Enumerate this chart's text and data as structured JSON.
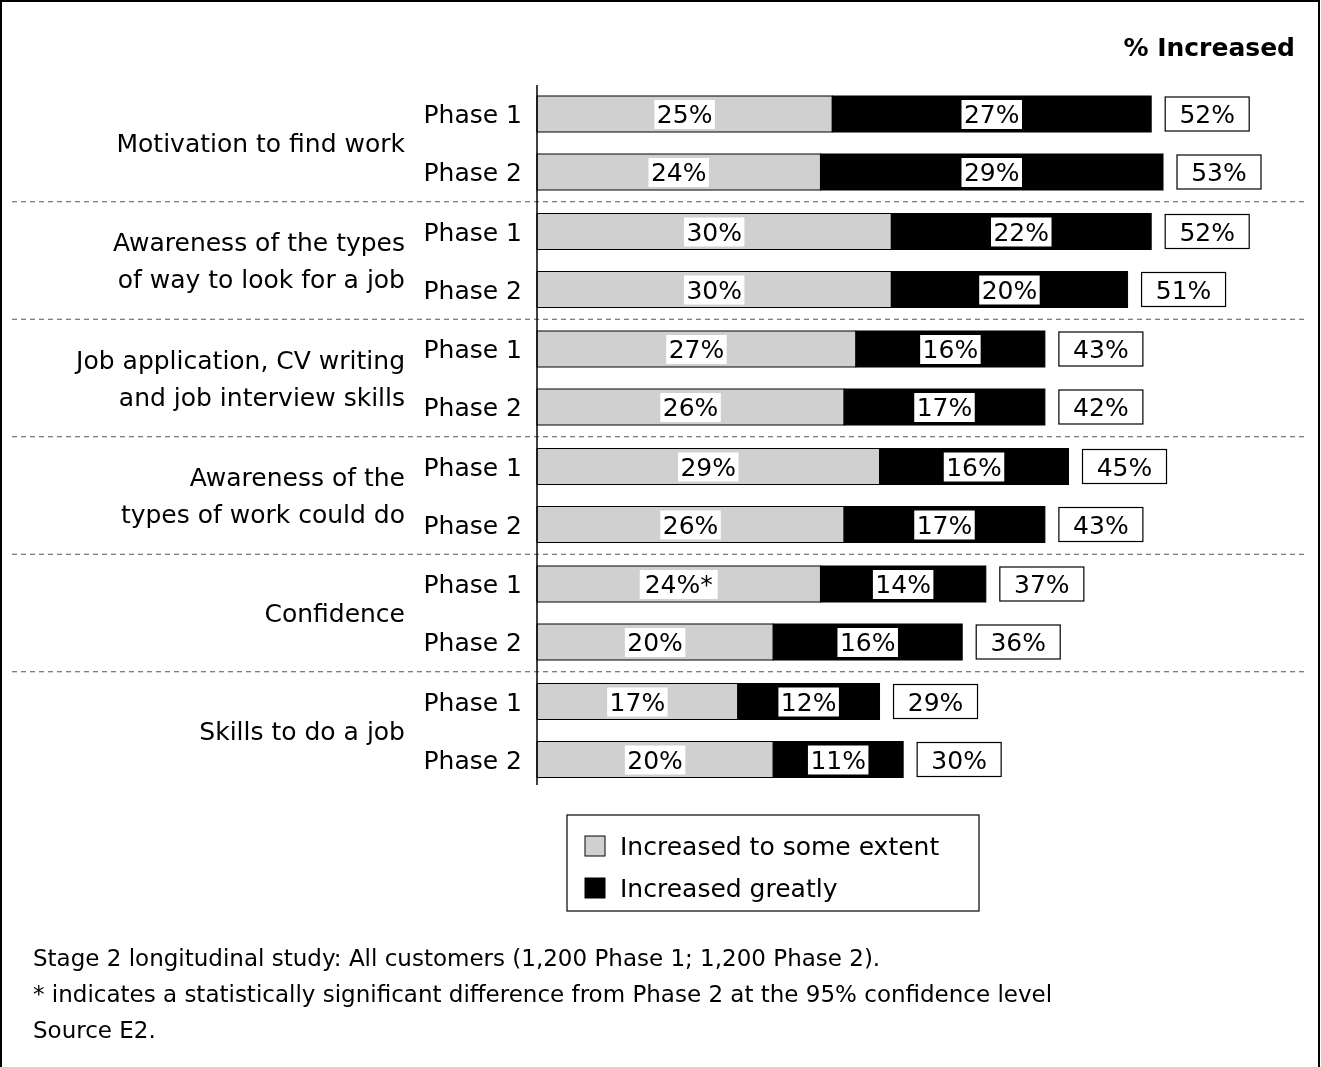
{
  "chart_data": {
    "type": "bar",
    "orientation": "horizontal",
    "stacked": true,
    "legend": "bottom",
    "categories": [
      "Phase 1",
      "Phase 2",
      "Phase 1",
      "Phase 2",
      "Phase 1",
      "Phase 2",
      "Phase 1",
      "Phase 2",
      "Phase 1",
      "Phase 2",
      "Phase 1",
      "Phase 2"
    ],
    "series": [
      {
        "name": "Increased to some extent",
        "color": "#d0d0d0",
        "values": [
          25,
          24,
          30,
          30,
          27,
          26,
          29,
          26,
          24,
          20,
          17,
          20
        ],
        "value_labels": [
          "25%",
          "24%",
          "30%",
          "30%",
          "27%",
          "26%",
          "29%",
          "26%",
          "24%*",
          "20%",
          "17%",
          "20%"
        ]
      },
      {
        "name": "Increased greatly",
        "color": "#000000",
        "values": [
          27,
          29,
          22,
          20,
          16,
          17,
          16,
          17,
          14,
          16,
          12,
          11
        ],
        "value_labels": [
          "27%",
          "29%",
          "22%",
          "20%",
          "16%",
          "17%",
          "16%",
          "17%",
          "14%",
          "16%",
          "12%",
          "11%"
        ]
      }
    ],
    "totals": [
      "52%",
      "53%",
      "52%",
      "51%",
      "43%",
      "42%",
      "45%",
      "43%",
      "37%",
      "36%",
      "29%",
      "30%"
    ],
    "annotations": [
      "% Increased",
      "Motivation to find work",
      "Awareness of the types of way to look for a job",
      "Job application, CV writing and job interview skills",
      "Awareness of the types of work could do",
      "Confidence",
      "Skills to do a job",
      "Stage 2 longitudinal study: All customers (1,200 Phase 1; 1,200 Phase 2).",
      "* indicates a statistically significant difference from Phase 2 at the 95% confidence level",
      "Source E2."
    ]
  }
}
